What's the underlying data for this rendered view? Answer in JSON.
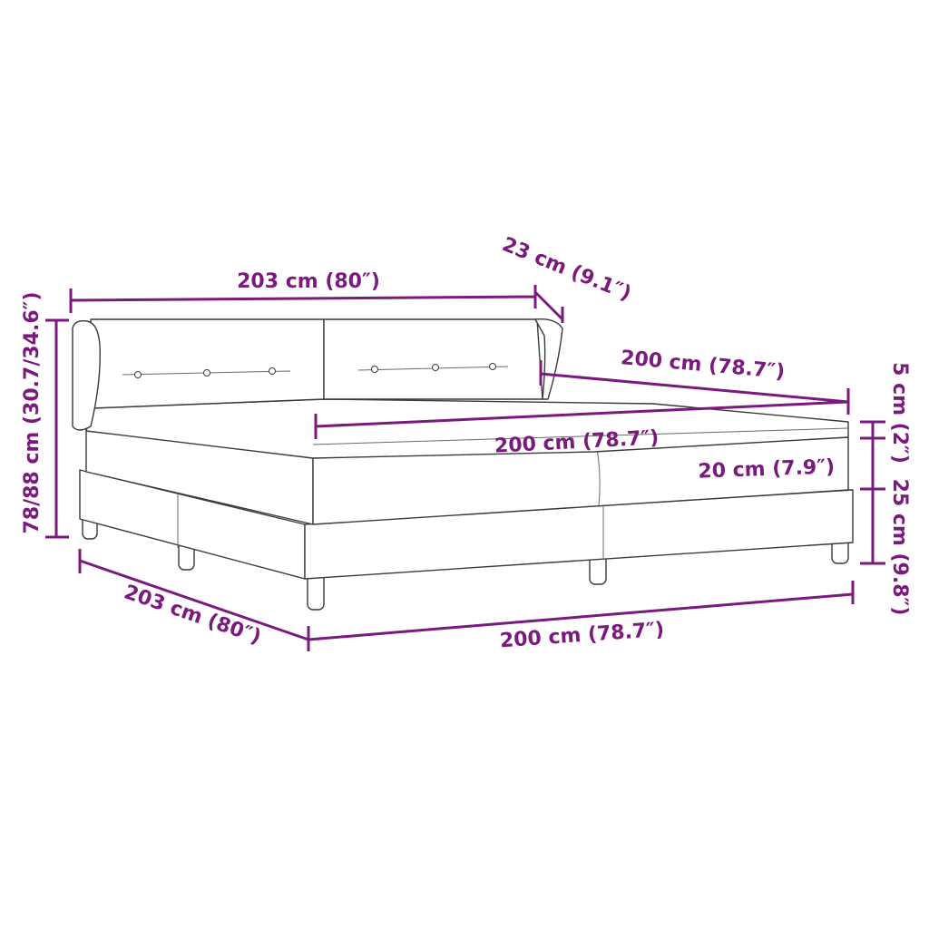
{
  "colors": {
    "dimension": "#7b1a7d",
    "outline": "#3a3a3a",
    "background": "#ffffff"
  },
  "dimensions": {
    "headboard_width": "203 cm (80″)",
    "headboard_depth": "23 cm (9.1″)",
    "total_height": "78/88 cm (30.7/34.6″)",
    "bed_length_top": "200 cm (78.7″)",
    "mattress_width": "200 cm (78.7″)",
    "topper_height": "5 cm (2″)",
    "mattress_height": "20 cm (7.9″)",
    "base_height": "25 cm (9.8″)",
    "bed_length_bottom": "203 cm (80″)",
    "bed_width_bottom": "200 cm (78.7″)"
  }
}
